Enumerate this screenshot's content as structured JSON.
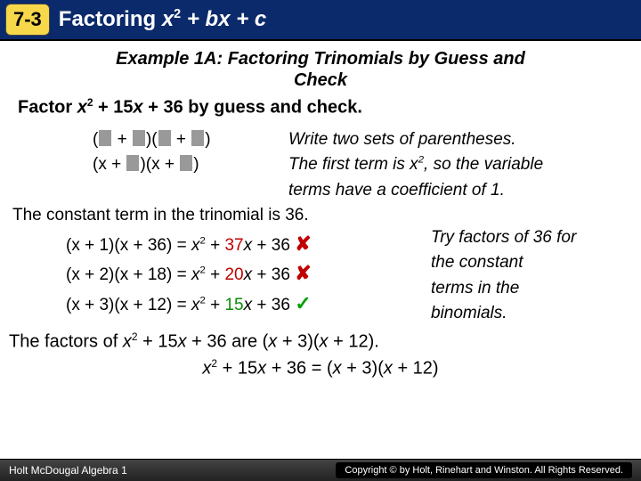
{
  "header": {
    "lesson_number": "7-3",
    "title_plain": "Factoring ",
    "title_formula_x2": "x",
    "title_formula_rest": " + bx + c",
    "title_color": "#ffffff",
    "bg_color": "#0b2a6b",
    "badge_bg": "#f7d84b"
  },
  "example": {
    "title_line1": "Example 1A: Factoring Trinomials by Guess and",
    "title_line2": "Check",
    "prompt_pre": "Factor ",
    "prompt_var": "x",
    "prompt_mid": " + 15",
    "prompt_var2": "x",
    "prompt_post": " + 36 by guess and check."
  },
  "steps": {
    "s1_lhs_open": "(",
    "s1_lhs_plus": " + ",
    "s1_lhs_mid": ")(",
    "s1_lhs_close": ")",
    "s1_rhs": "Write two sets of parentheses.",
    "s2_lhs_a": "(x + ",
    "s2_lhs_b": ")(x + ",
    "s2_lhs_c": ")",
    "s2_rhs_l1": "The first term is x",
    "s2_rhs_l2": ", so the variable",
    "s2_rhs_l3": "terms have a coefficient of 1."
  },
  "constant_line": "The constant term in the trinomial is 36.",
  "trials": [
    {
      "factored": "(x + 1)(x + 36)",
      "eq": " = ",
      "x2": "x",
      "plus": " + ",
      "mid": "37",
      "xv": "x",
      "plus2": " + 36",
      "ok": false
    },
    {
      "factored": "(x + 2)(x + 18)",
      "eq": " = ",
      "x2": "x",
      "plus": " + ",
      "mid": "20",
      "xv": "x",
      "plus2": " + 36",
      "ok": false
    },
    {
      "factored": "(x + 3)(x + 12)",
      "eq": " = ",
      "x2": "x",
      "plus": " + ",
      "mid": "15",
      "xv": "x",
      "plus2": " + 36",
      "ok": true
    }
  ],
  "trial_note": {
    "l1": "Try factors of 36 for",
    "l2": "the constant",
    "l3": "terms in the",
    "l4": "binomials."
  },
  "result": {
    "sentence_pre": "The factors of ",
    "sentence_var": "x",
    "sentence_mid1": " + 15",
    "sentence_mid2": " + 36 are (",
    "sentence_f1": "x",
    "sentence_f1b": " + 3)(",
    "sentence_f2": "x",
    "sentence_f2b": " + 12).",
    "final_lhs_x": "x",
    "final_lhs_mid": " + 15",
    "final_lhs_end": " + 36 = (",
    "final_r1": "x",
    "final_r1b": " + 3)(",
    "final_r2": "x",
    "final_r2b": " + 12)"
  },
  "footer": {
    "left": "Holt McDougal Algebra 1",
    "right": "Copyright © by Holt, Rinehart and Winston. All Rights Reserved."
  },
  "colors": {
    "green": "#0a8a0a",
    "red": "#c00000",
    "box": "#999999"
  }
}
